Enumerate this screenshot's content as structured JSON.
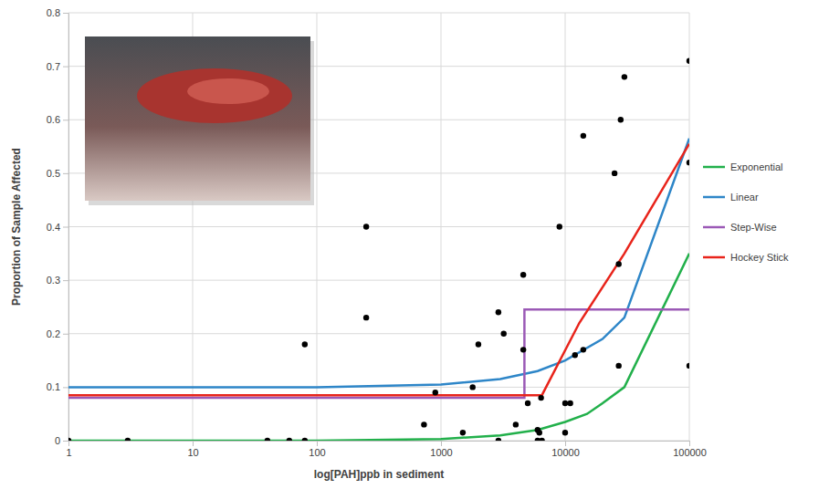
{
  "chart_data": {
    "type": "scatter",
    "x_label": "log[PAH]ppb in sediment",
    "y_label": "Proportion of Sample Affected",
    "log": "x",
    "grid": true,
    "legend": "right",
    "xlim": [
      1,
      100000
    ],
    "xticks": [
      1,
      10,
      100,
      1000,
      10000,
      100000
    ],
    "ylim": [
      0,
      0.8
    ],
    "yticks": [
      0,
      0.1,
      0.2,
      0.3,
      0.4,
      0.5,
      0.6,
      0.7,
      0.8
    ],
    "series": [
      {
        "type": "scatter",
        "marker": "circle",
        "color": "#000000",
        "x": [
          1,
          3,
          40,
          60,
          80,
          80,
          250,
          250,
          730,
          900,
          1500,
          1800,
          2000,
          2900,
          3200,
          2900,
          4000,
          4600,
          4600,
          5000,
          6000,
          6000,
          6200,
          6500,
          6400,
          9000,
          10000,
          11000,
          10000,
          12000,
          14000,
          14000,
          25000,
          27000,
          28000,
          27000,
          30000,
          100000,
          100000,
          100000
        ],
        "values": [
          0,
          0,
          0,
          0,
          0,
          0.18,
          0.4,
          0.23,
          0.03,
          0.09,
          0.015,
          0.1,
          0.18,
          0.24,
          0.2,
          0,
          0.03,
          0.31,
          0.17,
          0.07,
          0,
          0.02,
          0.015,
          0,
          0.08,
          0.4,
          0.07,
          0.07,
          0.015,
          0.16,
          0.17,
          0.57,
          0.5,
          0.33,
          0.6,
          0.14,
          0.68,
          0.71,
          0.52,
          0.14
        ]
      },
      {
        "name": "Exponential",
        "type": "line",
        "color": "#22b04b",
        "x": [
          1,
          100,
          1000,
          3000,
          6000,
          10000,
          15000,
          20000,
          30000,
          100000
        ],
        "values": [
          0,
          0,
          0.003,
          0.01,
          0.02,
          0.035,
          0.05,
          0.07,
          0.1,
          0.35
        ]
      },
      {
        "name": "Linear",
        "type": "line",
        "color": "#2e86c8",
        "x": [
          1,
          100,
          1000,
          3000,
          6000,
          10000,
          20000,
          30000,
          100000
        ],
        "values": [
          0.1,
          0.1,
          0.105,
          0.115,
          0.13,
          0.15,
          0.19,
          0.23,
          0.565
        ]
      },
      {
        "name": "Step-Wise",
        "type": "line",
        "color": "#9b59b6",
        "x": [
          1,
          4700,
          4700,
          100000
        ],
        "values": [
          0.08,
          0.08,
          0.245,
          0.245
        ]
      },
      {
        "name": "Hockey Stick",
        "type": "line",
        "color": "#e8241b",
        "x": [
          1,
          6500,
          13000,
          30000,
          100000
        ],
        "values": [
          0.085,
          0.085,
          0.22,
          0.35,
          0.555
        ]
      }
    ]
  }
}
